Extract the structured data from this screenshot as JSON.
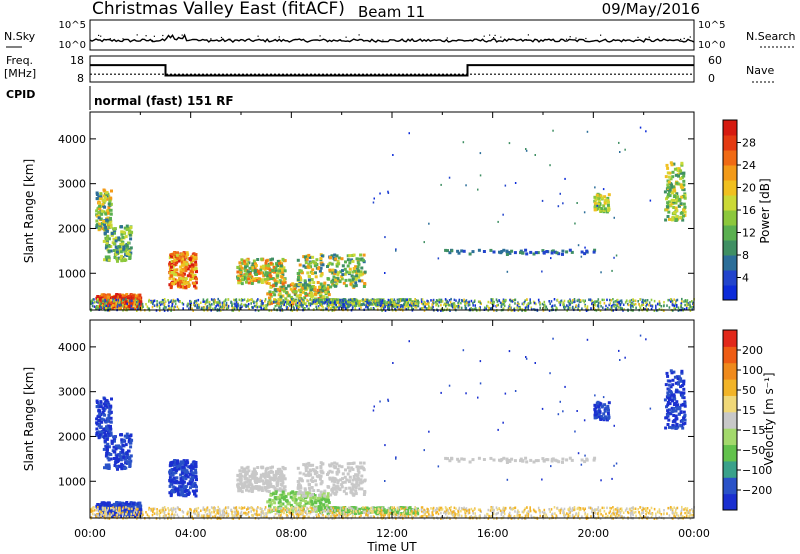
{
  "header": {
    "title": "Christmas Valley East (fitACF)",
    "beam": "Beam 11",
    "date": "09/May/2016"
  },
  "status_panels": {
    "nsky_label": "N.Sky",
    "nsky_ticks": [
      "10^5",
      "10^0"
    ],
    "nsearch_label": "N.Search",
    "nsearch_ticks": [
      "10^5",
      "10^0"
    ],
    "freq_label_line1": "Freq.",
    "freq_label_line2": "[MHz]",
    "freq_ticks": [
      "18",
      "8"
    ],
    "nave_label": "Nave",
    "nave_ticks": [
      "60",
      "0"
    ],
    "cpid_label": "CPID",
    "cpid_text": "normal (fast) 151 RF",
    "freq_trace_mhz": [
      {
        "t": 0,
        "f": 14.5
      },
      {
        "t": 3.0,
        "f": 14.5
      },
      {
        "t": 3.0,
        "f": 10.5
      },
      {
        "t": 15.0,
        "f": 10.5
      },
      {
        "t": 15.0,
        "f": 14.5
      },
      {
        "t": 24,
        "f": 14.5
      }
    ],
    "nave_level": 18
  },
  "chart_data": [
    {
      "type": "heatmap",
      "name": "Power",
      "ylabel": "Slant Range [km]",
      "xlim": [
        0,
        24
      ],
      "ylim": [
        180,
        4600
      ],
      "yticks": [
        "1000",
        "2000",
        "3000",
        "4000"
      ],
      "colorbar": {
        "label": "Power [dB]",
        "ticks": [
          "4",
          "8",
          "12",
          "16",
          "20",
          "24",
          "28"
        ],
        "colors": [
          "#0c2bd9",
          "#2244cc",
          "#2c6e99",
          "#3f8f63",
          "#5ab050",
          "#8cc83c",
          "#cbd936",
          "#f0c020",
          "#f39a18",
          "#f06a14",
          "#e43a12",
          "#d61a10"
        ]
      }
    },
    {
      "type": "heatmap",
      "name": "Velocity",
      "ylabel": "Slant Range [km]",
      "xlabel": "Time UT",
      "xlim": [
        0,
        24
      ],
      "ylim": [
        180,
        4600
      ],
      "xticks": [
        "00:00",
        "04:00",
        "08:00",
        "12:00",
        "16:00",
        "20:00",
        "00:00"
      ],
      "yticks": [
        "1000",
        "2000",
        "3000",
        "4000"
      ],
      "colorbar": {
        "label": "Velocity [m s⁻¹]",
        "ticks": [
          "200",
          "100",
          "50",
          "15",
          "−15",
          "−50",
          "−100",
          "−200"
        ],
        "colors": [
          "#1a2fd0",
          "#2a52c8",
          "#3aa18a",
          "#62c24c",
          "#a3d96c",
          "#c8c8c8",
          "#f0d878",
          "#f2b428",
          "#ef8a1c",
          "#ee5c14",
          "#e2281a"
        ]
      }
    }
  ]
}
